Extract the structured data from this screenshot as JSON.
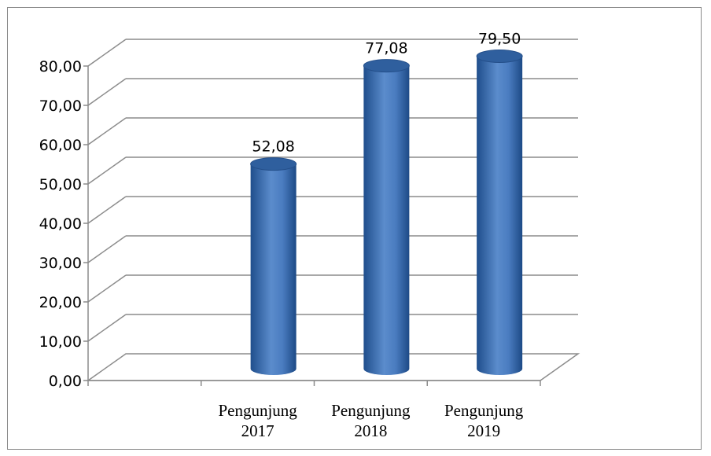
{
  "chart_data": {
    "type": "bar",
    "style": "3d-cylinder",
    "categories": [
      [
        "Pengunjung",
        "2017"
      ],
      [
        "Pengunjung",
        "2018"
      ],
      [
        "Pengunjung",
        "2019"
      ]
    ],
    "values": [
      52.08,
      77.08,
      79.5
    ],
    "data_labels": [
      "52,08",
      "77,08",
      "79,50"
    ],
    "y_ticks": [
      "0,00",
      "10,00",
      "20,00",
      "30,00",
      "40,00",
      "50,00",
      "60,00",
      "70,00",
      "80,00"
    ],
    "ylim": [
      0,
      80
    ],
    "grid": true,
    "legend": "none",
    "title": "",
    "xlabel": "",
    "ylabel": "",
    "colors": {
      "bar_dark": "#1f4e8c",
      "bar_mid": "#4a7cc0",
      "bar_light": "#8fb3e4",
      "bar_top": "#2f5f9e",
      "grid": "#8c8c8c"
    }
  }
}
